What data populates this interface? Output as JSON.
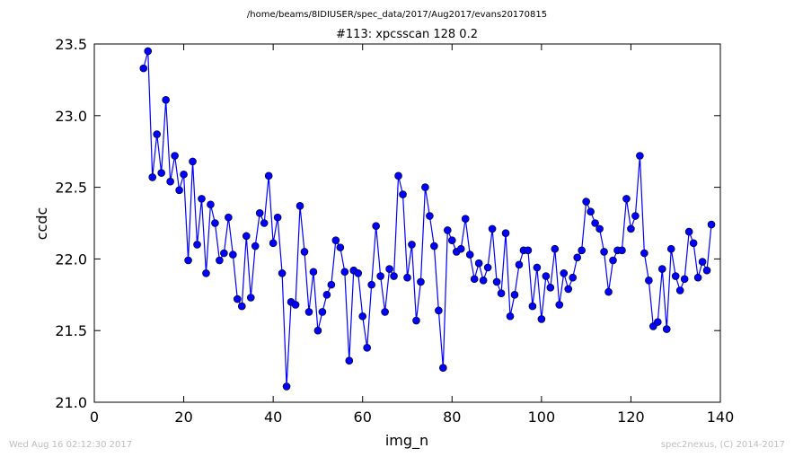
{
  "header": {
    "path": "/home/beams/8IDIUSER/spec_data/2017/Aug2017/evans20170815"
  },
  "footer": {
    "timestamp": "Wed Aug 16 02:12:30 2017",
    "credit": "spec2nexus, (C) 2014-2017"
  },
  "chart_data": {
    "type": "line",
    "title": "#113: xpcsscan 128 0.2",
    "xlabel": "img_n",
    "ylabel": "ccdc",
    "xlim": [
      0,
      140
    ],
    "ylim": [
      21.0,
      23.5
    ],
    "xticks": [
      "0",
      "20",
      "40",
      "60",
      "80",
      "100",
      "120",
      "140"
    ],
    "yticks": [
      "21.0",
      "21.5",
      "22.0",
      "22.5",
      "23.0",
      "23.5"
    ],
    "grid": false,
    "line_color": "#0000ff",
    "marker": "circle",
    "x": [
      11,
      12,
      13,
      14,
      15,
      16,
      17,
      18,
      19,
      20,
      21,
      22,
      23,
      24,
      25,
      26,
      27,
      28,
      29,
      30,
      31,
      32,
      33,
      34,
      35,
      36,
      37,
      38,
      39,
      40,
      41,
      42,
      43,
      44,
      45,
      46,
      47,
      48,
      49,
      50,
      51,
      52,
      53,
      54,
      55,
      56,
      57,
      58,
      59,
      60,
      61,
      62,
      63,
      64,
      65,
      66,
      67,
      68,
      69,
      70,
      71,
      72,
      73,
      74,
      75,
      76,
      77,
      78,
      79,
      80,
      81,
      82,
      83,
      84,
      85,
      86,
      87,
      88,
      89,
      90,
      91,
      92,
      93,
      94,
      95,
      96,
      97,
      98,
      99,
      100,
      101,
      102,
      103,
      104,
      105,
      106,
      107,
      108,
      109,
      110,
      111,
      112,
      113,
      114,
      115,
      116,
      117,
      118,
      119,
      120,
      121,
      122,
      123,
      124,
      125,
      126,
      127,
      128,
      129,
      130,
      131,
      132,
      133,
      134,
      135,
      136,
      137,
      138
    ],
    "y": [
      23.33,
      23.45,
      22.57,
      22.87,
      22.6,
      23.11,
      22.54,
      22.72,
      22.48,
      22.59,
      21.99,
      22.68,
      22.1,
      22.42,
      21.9,
      22.38,
      22.25,
      21.99,
      22.04,
      22.29,
      22.03,
      21.72,
      21.67,
      22.16,
      21.73,
      22.09,
      22.32,
      22.25,
      22.58,
      22.11,
      22.29,
      21.9,
      21.11,
      21.7,
      21.68,
      22.37,
      22.05,
      21.63,
      21.91,
      21.5,
      21.63,
      21.75,
      21.82,
      22.13,
      22.08,
      21.91,
      21.29,
      21.92,
      21.9,
      21.6,
      21.38,
      21.82,
      22.23,
      21.88,
      21.63,
      21.93,
      21.88,
      22.58,
      22.45,
      21.87,
      22.1,
      21.57,
      21.84,
      22.5,
      22.3,
      22.09,
      21.64,
      21.24,
      22.2,
      22.13,
      22.05,
      22.07,
      22.28,
      22.03,
      21.86,
      21.97,
      21.85,
      21.94,
      22.21,
      21.84,
      21.76,
      22.18,
      21.6,
      21.75,
      21.96,
      22.06,
      22.06,
      21.67,
      21.94,
      21.58,
      21.88,
      21.8,
      22.07,
      21.68,
      21.9,
      21.79,
      21.87,
      22.01,
      22.06,
      22.4,
      22.33,
      22.25,
      22.21,
      22.05,
      21.77,
      21.99,
      22.06,
      22.06,
      22.42,
      22.21,
      22.3,
      22.72,
      22.04,
      21.85,
      21.53,
      21.56,
      21.93,
      21.51,
      22.07,
      21.88,
      21.78,
      21.86,
      22.19,
      22.11,
      21.87,
      21.98,
      21.92,
      22.24
    ]
  }
}
